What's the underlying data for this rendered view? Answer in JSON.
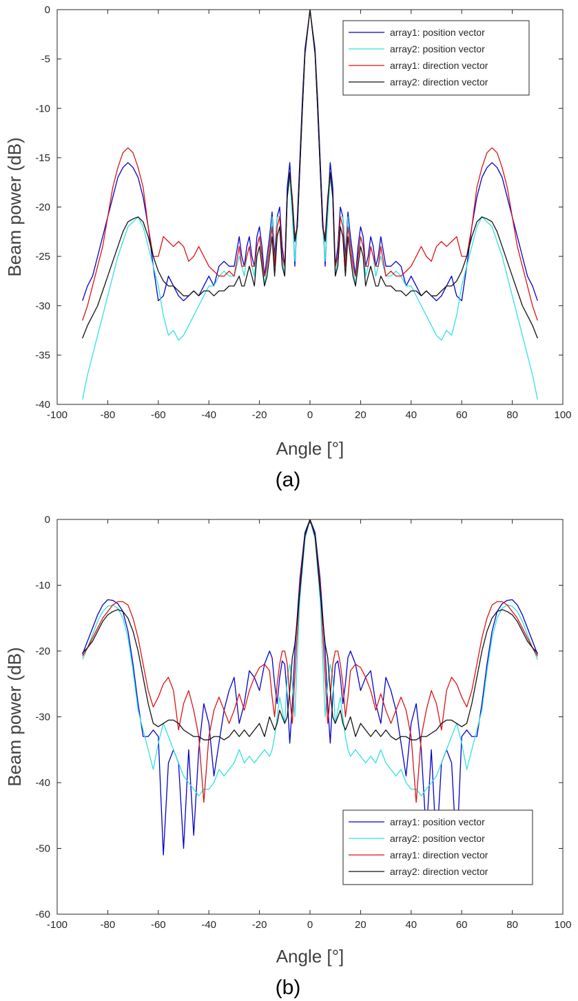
{
  "figure": {
    "panels": [
      {
        "label": "(a)"
      },
      {
        "label": "(b)"
      }
    ]
  },
  "chart_data": [
    {
      "type": "line",
      "panel": "(a)",
      "xlabel": "Angle [°]",
      "ylabel": "Beam power (dB)",
      "xlim": [
        -100,
        100
      ],
      "ylim": [
        -40,
        0
      ],
      "xticks": [
        -100,
        -80,
        -60,
        -40,
        -20,
        0,
        20,
        40,
        60,
        80,
        100
      ],
      "yticks": [
        0,
        -5,
        -10,
        -15,
        -20,
        -25,
        -30,
        -35,
        -40
      ],
      "grid": false,
      "legend": "top-right",
      "series": [
        {
          "name": "array1: position vector",
          "color": "#0000cc",
          "x": [
            0,
            2,
            3,
            4,
            5,
            6,
            7,
            8,
            9,
            10,
            11,
            12,
            13,
            14,
            15,
            16,
            17,
            18,
            19,
            20,
            21,
            22,
            23,
            24,
            25,
            26,
            27,
            28,
            30,
            32,
            34,
            36,
            38,
            40,
            42,
            44,
            46,
            48,
            50,
            52,
            54,
            56,
            58,
            60,
            62,
            64,
            66,
            68,
            70,
            72,
            74,
            76,
            78,
            80,
            82,
            84,
            86,
            88,
            90
          ],
          "y": [
            0,
            -4,
            -9,
            -15,
            -21,
            -26,
            -20,
            -15.5,
            -18,
            -26,
            -24,
            -20,
            -21,
            -25,
            -20.5,
            -23,
            -25,
            -27,
            -24,
            -22,
            -23,
            -26,
            -25,
            -23,
            -24,
            -26,
            -25,
            -23,
            -26,
            -26,
            -25.5,
            -26,
            -28,
            -27,
            -28,
            -29,
            -28.5,
            -29,
            -29.5,
            -29,
            -28,
            -27,
            -29,
            -29.5,
            -26,
            -22,
            -19,
            -17,
            -16,
            -15.5,
            -16,
            -17,
            -19,
            -21,
            -23,
            -25,
            -27,
            -28,
            -29.5
          ]
        },
        {
          "name": "array2: position vector",
          "color": "#33e0e0",
          "x": [
            0,
            2,
            3,
            4,
            5,
            6,
            7,
            8,
            9,
            10,
            11,
            12,
            13,
            14,
            15,
            16,
            17,
            18,
            19,
            20,
            21,
            22,
            23,
            24,
            25,
            26,
            27,
            28,
            30,
            32,
            34,
            36,
            38,
            40,
            42,
            44,
            46,
            48,
            50,
            52,
            54,
            56,
            58,
            60,
            62,
            64,
            66,
            68,
            70,
            72,
            74,
            76,
            78,
            80,
            82,
            84,
            86,
            88,
            90
          ],
          "y": [
            0,
            -4.5,
            -10,
            -16,
            -22,
            -25.5,
            -21,
            -17,
            -19,
            -27,
            -25,
            -21,
            -21,
            -26,
            -21,
            -24,
            -26,
            -28,
            -25,
            -23,
            -24,
            -27,
            -26,
            -24,
            -25,
            -27,
            -26,
            -25,
            -27,
            -27,
            -26.5,
            -27,
            -28,
            -28,
            -29,
            -30,
            -31,
            -32,
            -33,
            -33.5,
            -32.5,
            -33,
            -31,
            -28,
            -26,
            -24,
            -22,
            -21,
            -21.5,
            -22,
            -23.5,
            -25,
            -27,
            -29,
            -31,
            -33,
            -35,
            -37,
            -39.5
          ]
        },
        {
          "name": "array1: direction vector",
          "color": "#dd1111",
          "x": [
            0,
            2,
            3,
            4,
            5,
            6,
            7,
            8,
            9,
            10,
            11,
            12,
            13,
            14,
            15,
            16,
            17,
            18,
            19,
            20,
            21,
            22,
            23,
            24,
            25,
            26,
            27,
            28,
            30,
            32,
            34,
            36,
            38,
            40,
            42,
            44,
            46,
            48,
            50,
            52,
            54,
            56,
            58,
            60,
            62,
            64,
            66,
            68,
            70,
            72,
            74,
            76,
            78,
            80,
            82,
            84,
            86,
            88,
            90
          ],
          "y": [
            0,
            -4.5,
            -10,
            -16,
            -22,
            -23,
            -19,
            -16.5,
            -19,
            -26,
            -25,
            -21,
            -22,
            -26,
            -22,
            -24,
            -26,
            -27,
            -25,
            -23,
            -24,
            -26,
            -26,
            -24,
            -25,
            -26,
            -26,
            -24,
            -27,
            -26.5,
            -27,
            -27,
            -26.5,
            -26,
            -25,
            -24,
            -25,
            -25.5,
            -24,
            -23.5,
            -24,
            -23.5,
            -23,
            -25,
            -25,
            -22,
            -18,
            -16,
            -14.5,
            -14,
            -14.5,
            -16,
            -18,
            -21,
            -24,
            -26,
            -28,
            -30,
            -31.5
          ]
        },
        {
          "name": "array2: direction vector",
          "color": "#111111",
          "x": [
            0,
            2,
            3,
            4,
            5,
            6,
            7,
            8,
            9,
            10,
            11,
            12,
            13,
            14,
            15,
            16,
            17,
            18,
            19,
            20,
            21,
            22,
            23,
            24,
            25,
            26,
            27,
            28,
            30,
            32,
            34,
            36,
            38,
            40,
            42,
            44,
            46,
            48,
            50,
            52,
            54,
            56,
            58,
            60,
            62,
            64,
            66,
            68,
            70,
            72,
            74,
            76,
            78,
            80,
            82,
            84,
            86,
            88,
            90
          ],
          "y": [
            0,
            -4.5,
            -10,
            -16,
            -22,
            -23.5,
            -19.5,
            -16.5,
            -19,
            -27,
            -26,
            -22,
            -23,
            -27,
            -23,
            -25,
            -27,
            -28,
            -26,
            -24,
            -25,
            -28,
            -27,
            -26,
            -27,
            -28,
            -28,
            -27,
            -28,
            -28,
            -28.5,
            -28.5,
            -29,
            -28.5,
            -28.5,
            -29,
            -28.5,
            -29,
            -29,
            -28.5,
            -28,
            -28,
            -27.5,
            -26.5,
            -25,
            -23,
            -21.5,
            -21,
            -21.2,
            -21.5,
            -22.5,
            -24,
            -25.5,
            -27,
            -28.5,
            -30,
            -31,
            -32,
            -33.3
          ]
        }
      ]
    },
    {
      "type": "line",
      "panel": "(b)",
      "xlabel": "Angle [°]",
      "ylabel": "Beam power (dB)",
      "xlim": [
        -100,
        100
      ],
      "ylim": [
        -60,
        0
      ],
      "xticks": [
        -100,
        -80,
        -60,
        -40,
        -20,
        0,
        20,
        40,
        60,
        80,
        100
      ],
      "yticks": [
        0,
        -10,
        -20,
        -30,
        -40,
        -50,
        -60
      ],
      "grid": false,
      "legend": "bottom-right",
      "series": [
        {
          "name": "array1: position vector",
          "color": "#0000cc",
          "x": [
            0,
            2,
            4,
            6,
            7,
            8,
            9,
            10,
            11,
            12,
            13,
            14,
            15,
            16,
            18,
            20,
            22,
            24,
            26,
            28,
            30,
            32,
            34,
            36,
            38,
            40,
            42,
            44,
            46,
            48,
            50,
            52,
            54,
            56,
            58,
            60,
            62,
            64,
            66,
            68,
            70,
            72,
            74,
            76,
            78,
            80,
            82,
            84,
            86,
            88,
            90
          ],
          "y": [
            0,
            -2,
            -9,
            -20,
            -28,
            -34,
            -27,
            -22,
            -21.5,
            -24,
            -28,
            -25,
            -21,
            -20,
            -22,
            -26,
            -24,
            -23,
            -28,
            -31,
            -24,
            -26,
            -29,
            -34,
            -39,
            -31,
            -28,
            -35,
            -48,
            -35,
            -50,
            -37,
            -35,
            -37,
            -51,
            -33,
            -32,
            -33,
            -33,
            -28,
            -22,
            -17,
            -14,
            -12.8,
            -12.3,
            -12.2,
            -13,
            -14.5,
            -16.5,
            -18.5,
            -20.5
          ]
        },
        {
          "name": "array2: position vector",
          "color": "#33e0e0",
          "x": [
            0,
            2,
            4,
            6,
            7,
            8,
            9,
            10,
            11,
            12,
            13,
            14,
            15,
            16,
            18,
            20,
            22,
            24,
            26,
            28,
            30,
            32,
            34,
            36,
            38,
            40,
            42,
            44,
            46,
            48,
            50,
            52,
            54,
            56,
            58,
            60,
            62,
            64,
            66,
            68,
            70,
            72,
            74,
            76,
            78,
            80,
            82,
            84,
            86,
            88,
            90
          ],
          "y": [
            0,
            -3,
            -12,
            -30,
            -25,
            -22,
            -24,
            -31,
            -29,
            -27,
            -30,
            -33,
            -35,
            -36,
            -35,
            -36,
            -37,
            -36,
            -37,
            -35,
            -37,
            -38,
            -39,
            -38,
            -40,
            -41,
            -41,
            -42,
            -41,
            -40,
            -39,
            -37,
            -35,
            -33,
            -31,
            -34,
            -38,
            -35,
            -32,
            -29,
            -23,
            -18,
            -15,
            -13.5,
            -13,
            -13.2,
            -14,
            -15.5,
            -17.5,
            -19.5,
            -21.3
          ]
        },
        {
          "name": "array1: direction vector",
          "color": "#dd1111",
          "x": [
            0,
            2,
            4,
            6,
            7,
            8,
            9,
            10,
            11,
            12,
            13,
            14,
            15,
            16,
            18,
            20,
            22,
            24,
            26,
            28,
            30,
            32,
            34,
            36,
            38,
            40,
            42,
            44,
            46,
            48,
            50,
            52,
            54,
            56,
            58,
            60,
            62,
            64,
            66,
            68,
            70,
            72,
            74,
            76,
            78,
            80,
            82,
            84,
            86,
            88,
            90
          ],
          "y": [
            0,
            -2.5,
            -10,
            -24,
            -31,
            -27,
            -22,
            -20,
            -20,
            -22,
            -25,
            -30,
            -27,
            -23,
            -22,
            -22.5,
            -24,
            -26,
            -29,
            -26.5,
            -29,
            -31,
            -29,
            -27,
            -29,
            -33,
            -43,
            -33,
            -29,
            -26,
            -28,
            -32,
            -26,
            -24,
            -25,
            -27,
            -28.5,
            -26,
            -22,
            -18,
            -15,
            -13,
            -12.5,
            -12.5,
            -13,
            -14,
            -15,
            -16.5,
            -18,
            -19.5,
            -20.8
          ]
        },
        {
          "name": "array2: direction vector",
          "color": "#111111",
          "x": [
            0,
            2,
            4,
            6,
            7,
            8,
            9,
            10,
            11,
            12,
            13,
            14,
            15,
            16,
            18,
            20,
            22,
            24,
            26,
            28,
            30,
            32,
            34,
            36,
            38,
            40,
            42,
            44,
            46,
            48,
            50,
            52,
            54,
            56,
            58,
            60,
            62,
            64,
            66,
            68,
            70,
            72,
            74,
            76,
            78,
            80,
            82,
            84,
            86,
            88,
            90
          ],
          "y": [
            0,
            -2.5,
            -11,
            -19,
            -21,
            -26,
            -30,
            -31,
            -30,
            -29,
            -31,
            -32,
            -31,
            -30,
            -33,
            -31,
            -32,
            -33,
            -32,
            -33,
            -32,
            -33,
            -33.5,
            -33,
            -33,
            -33.5,
            -33.5,
            -33,
            -33,
            -32.5,
            -32,
            -31,
            -30.5,
            -30.5,
            -31,
            -31.5,
            -31,
            -28,
            -24,
            -20,
            -17,
            -15,
            -14,
            -13.7,
            -14,
            -14.5,
            -15.5,
            -17,
            -18.5,
            -19.5,
            -20.3
          ]
        }
      ]
    }
  ]
}
